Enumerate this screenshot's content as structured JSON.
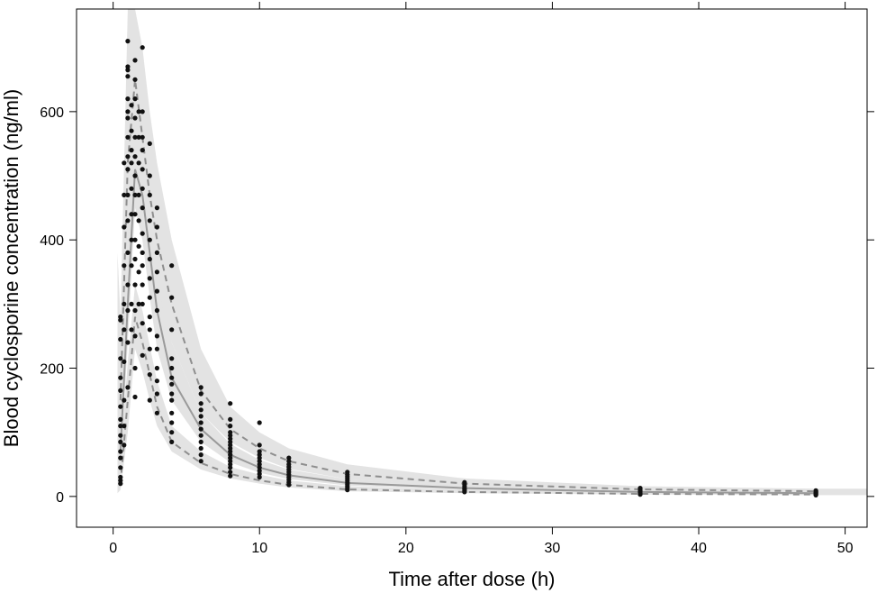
{
  "chart_data": {
    "type": "scatter",
    "title": "",
    "xlabel": "Time after dose (h)",
    "ylabel": "Blood cyclosporine concentration (ng/ml)",
    "xlim": [
      -2.5,
      51.5
    ],
    "ylim": [
      -48,
      760
    ],
    "xticks": [
      0,
      10,
      20,
      30,
      40,
      50
    ],
    "yticks": [
      0,
      200,
      400,
      600
    ],
    "grid": false,
    "legend": "none",
    "colors": {
      "points": "#111111",
      "band": "#e3e3e3",
      "median": "#9a9a9a",
      "percentile": "#8e8e8e",
      "axis": "#000000"
    },
    "observed_groups": [
      {
        "x": 0.5,
        "values": [
          20,
          25,
          30,
          45,
          60,
          70,
          85,
          95,
          110,
          120,
          140,
          165,
          185,
          215,
          245,
          275,
          280
        ]
      },
      {
        "x": 0.75,
        "values": [
          80,
          110,
          150,
          210,
          260,
          300,
          360,
          420,
          470,
          520
        ]
      },
      {
        "x": 1.0,
        "values": [
          170,
          240,
          290,
          330,
          380,
          430,
          470,
          510,
          530,
          560,
          590,
          600,
          620,
          655,
          665,
          670,
          710
        ]
      },
      {
        "x": 1.25,
        "values": [
          260,
          300,
          360,
          400,
          440,
          480,
          520,
          540,
          570,
          610
        ]
      },
      {
        "x": 1.5,
        "values": [
          155,
          200,
          250,
          290,
          330,
          370,
          400,
          440,
          470,
          500,
          530,
          560,
          590,
          620,
          650,
          680
        ]
      },
      {
        "x": 1.75,
        "values": [
          300,
          350,
          390,
          430,
          470,
          520,
          560,
          600
        ]
      },
      {
        "x": 2.0,
        "values": [
          220,
          270,
          300,
          330,
          360,
          380,
          410,
          450,
          480,
          510,
          540,
          560,
          600,
          700
        ]
      },
      {
        "x": 2.5,
        "values": [
          150,
          190,
          230,
          260,
          280,
          310,
          340,
          370,
          400,
          430,
          470,
          500,
          550
        ]
      },
      {
        "x": 3.0,
        "values": [
          130,
          160,
          180,
          200,
          230,
          250,
          290,
          320,
          350,
          380,
          420,
          450
        ]
      },
      {
        "x": 4.0,
        "values": [
          85,
          100,
          115,
          130,
          150,
          160,
          175,
          185,
          200,
          215,
          260,
          310,
          360
        ]
      },
      {
        "x": 6.0,
        "values": [
          55,
          65,
          75,
          85,
          95,
          105,
          115,
          125,
          135,
          145,
          160,
          170
        ]
      },
      {
        "x": 8.0,
        "values": [
          32,
          38,
          45,
          50,
          55,
          60,
          65,
          70,
          75,
          80,
          85,
          90,
          95,
          100,
          110,
          120,
          145
        ]
      },
      {
        "x": 10.0,
        "values": [
          30,
          35,
          40,
          45,
          50,
          55,
          60,
          65,
          70,
          80,
          115
        ]
      },
      {
        "x": 12.0,
        "values": [
          18,
          22,
          26,
          30,
          34,
          38,
          42,
          46,
          50,
          55,
          60
        ]
      },
      {
        "x": 16.0,
        "values": [
          10,
          13,
          16,
          19,
          22,
          25,
          28,
          31,
          34,
          38
        ]
      },
      {
        "x": 24.0,
        "values": [
          7,
          9,
          11,
          13,
          16,
          19,
          22
        ]
      },
      {
        "x": 36.0,
        "values": [
          3,
          5,
          7,
          9,
          11,
          13
        ]
      },
      {
        "x": 48.0,
        "values": [
          2,
          3,
          4,
          5,
          6,
          7,
          8,
          9
        ]
      }
    ],
    "median": {
      "x": [
        0.5,
        1,
        1.5,
        2,
        2.5,
        3,
        4,
        6,
        8,
        10,
        12,
        16,
        24,
        36,
        48
      ],
      "y": [
        70,
        300,
        510,
        470,
        380,
        290,
        185,
        105,
        65,
        45,
        33,
        21,
        13,
        7,
        5
      ]
    },
    "p05": {
      "x": [
        0.5,
        1,
        1.5,
        2,
        2.5,
        3,
        4,
        6,
        8,
        10,
        12,
        16,
        24,
        36,
        48
      ],
      "y": [
        20,
        150,
        280,
        240,
        190,
        140,
        85,
        52,
        35,
        25,
        18,
        11,
        7,
        4,
        3
      ]
    },
    "p95": {
      "x": [
        0.5,
        1,
        1.5,
        2,
        2.5,
        3,
        4,
        6,
        8,
        10,
        12,
        16,
        24,
        36,
        48
      ],
      "y": [
        150,
        520,
        650,
        560,
        470,
        400,
        300,
        165,
        105,
        75,
        55,
        35,
        20,
        11,
        8
      ]
    },
    "band_p05": {
      "x": [
        0.3,
        0.5,
        1,
        1.5,
        2,
        2.5,
        3,
        4,
        6,
        8,
        10,
        12,
        16,
        24,
        36,
        48,
        51.5
      ],
      "lo": [
        5,
        10,
        100,
        230,
        195,
        150,
        110,
        70,
        42,
        28,
        20,
        14,
        8,
        5,
        3,
        2,
        2
      ],
      "hi": [
        40,
        60,
        210,
        330,
        290,
        235,
        180,
        110,
        70,
        46,
        34,
        25,
        16,
        10,
        6,
        5,
        5
      ]
    },
    "band_median": {
      "x": [
        0.3,
        0.5,
        1,
        1.5,
        2,
        2.5,
        3,
        4,
        6,
        8,
        10,
        12,
        16,
        24,
        36,
        48,
        51.5
      ],
      "lo": [
        20,
        40,
        240,
        450,
        400,
        310,
        230,
        150,
        85,
        53,
        37,
        27,
        17,
        10,
        5,
        4,
        4
      ],
      "hi": [
        130,
        150,
        390,
        590,
        540,
        460,
        360,
        240,
        130,
        82,
        57,
        42,
        27,
        16,
        10,
        7,
        7
      ]
    },
    "band_p95": {
      "x": [
        0.3,
        0.5,
        1,
        1.5,
        2,
        2.5,
        3,
        4,
        6,
        8,
        10,
        12,
        16,
        24,
        36,
        48,
        51.5
      ],
      "lo": [
        70,
        90,
        380,
        550,
        460,
        400,
        330,
        240,
        130,
        85,
        60,
        43,
        27,
        15,
        8,
        6,
        6
      ],
      "hi": [
        380,
        280,
        760,
        760,
        700,
        600,
        520,
        400,
        230,
        140,
        100,
        75,
        50,
        28,
        16,
        12,
        12
      ]
    }
  }
}
